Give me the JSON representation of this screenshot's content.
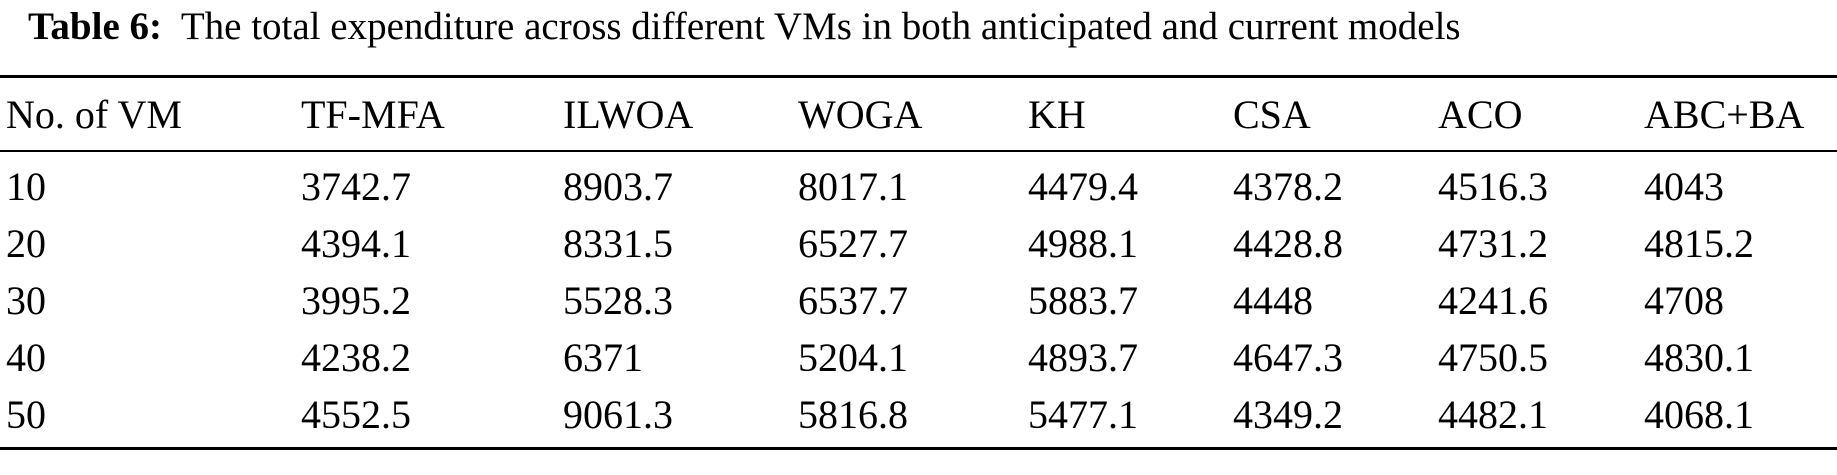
{
  "caption": {
    "label": "Table 6:",
    "text": "The total expenditure across different VMs in both anticipated and current models"
  },
  "table": {
    "headers": [
      "No. of VM",
      "TF-MFA",
      "ILWOA",
      "WOGA",
      "KH",
      "CSA",
      "ACO",
      "ABC+BA"
    ],
    "rows": [
      [
        "10",
        "3742.7",
        "8903.7",
        "8017.1",
        "4479.4",
        "4378.2",
        "4516.3",
        "4043"
      ],
      [
        "20",
        "4394.1",
        "8331.5",
        "6527.7",
        "4988.1",
        "4428.8",
        "4731.2",
        "4815.2"
      ],
      [
        "30",
        "3995.2",
        "5528.3",
        "6537.7",
        "5883.7",
        "4448",
        "4241.6",
        "4708"
      ],
      [
        "40",
        "4238.2",
        "6371",
        "5204.1",
        "4893.7",
        "4647.3",
        "4750.5",
        "4830.1"
      ],
      [
        "50",
        "4552.5",
        "9061.3",
        "5816.8",
        "5477.1",
        "4349.2",
        "4482.1",
        "4068.1"
      ]
    ]
  }
}
